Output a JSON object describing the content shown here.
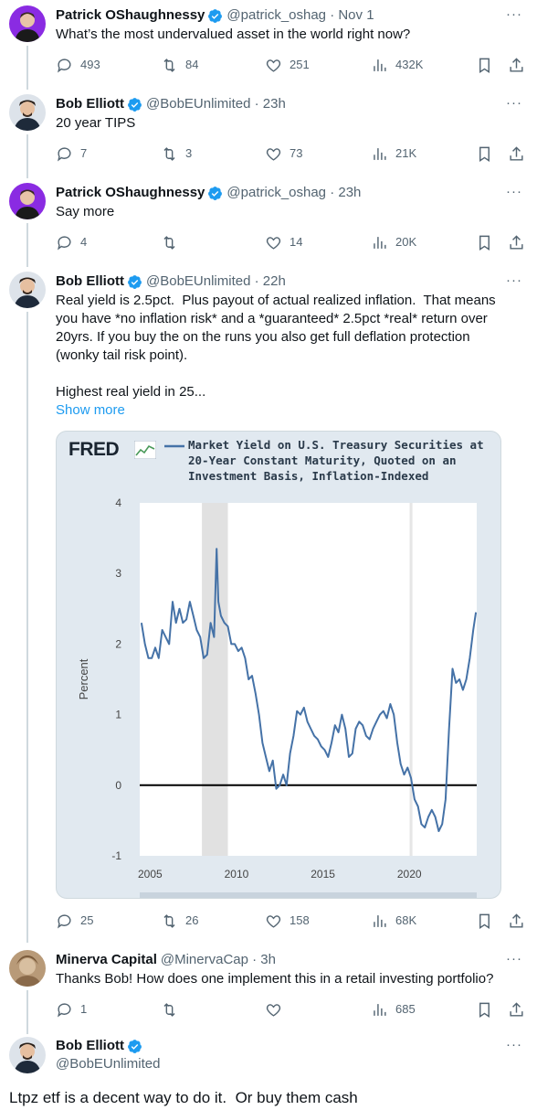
{
  "tweets": [
    {
      "name": "Patrick OShaughnessy",
      "meta": "@patrick_oshag · Nov 1",
      "text": "What’s the most undervalued asset in the world right now?",
      "replies": "493",
      "retweets": "84",
      "likes": "251",
      "views": "432K"
    },
    {
      "name": "Bob Elliott",
      "meta": "@BobEUnlimited · 23h",
      "text": "20 year TIPS",
      "replies": "7",
      "retweets": "3",
      "likes": "73",
      "views": "21K"
    },
    {
      "name": "Patrick OShaughnessy",
      "meta": "@patrick_oshag · 23h",
      "text": "Say more",
      "replies": "4",
      "retweets": "",
      "likes": "14",
      "views": "20K"
    },
    {
      "name": "Bob Elliott",
      "meta": "@BobEUnlimited · 22h",
      "text": "Real yield is 2.5pct.  Plus payout of actual realized inflation.  That means you have *no inflation risk* and a *guaranteed* 2.5pct *real* return over 20yrs. If you buy the on the runs you also get full deflation protection (wonky tail risk point).\n\nHighest real yield in 25...",
      "show_more": "Show more",
      "replies": "25",
      "retweets": "26",
      "likes": "158",
      "views": "68K"
    },
    {
      "name": "Minerva Capital",
      "meta": "@MinervaCap · 3h",
      "text": "Thanks Bob! How does one implement this in a retail investing portfolio?",
      "replies": "1",
      "retweets": "",
      "likes": "",
      "views": "685"
    },
    {
      "name": "Bob Elliott",
      "meta": "@BobEUnlimited",
      "text": "Ltpz etf is a decent way to do it.  Or buy them cash"
    }
  ],
  "more_glyph": "···",
  "colors": {
    "verified": "#1d9bf0",
    "line": "#4572a7",
    "link": "#1d9bf0",
    "muted": "#536471"
  },
  "chart_data": {
    "type": "line",
    "logo": "FRED",
    "title": "Market Yield on U.S. Treasury Securities at 20-Year Constant Maturity, Quoted on an Investment Basis, Inflation-Indexed",
    "ylabel": "Percent",
    "xlabel": "",
    "ylim": [
      -1,
      4
    ],
    "xlim": [
      2004.4,
      2023.9
    ],
    "yticks": [
      "4",
      "3",
      "2",
      "1",
      "0",
      "-1"
    ],
    "xticks": [
      "2005",
      "2010",
      "2015",
      "2020"
    ],
    "recession": [
      2008.0,
      2009.5
    ],
    "covid_line": 2020.1,
    "series": [
      {
        "x": [
          2004.5,
          2004.7,
          2004.9,
          2005.1,
          2005.3,
          2005.5,
          2005.7,
          2005.9,
          2006.1,
          2006.3,
          2006.5,
          2006.7,
          2006.9,
          2007.1,
          2007.3,
          2007.5,
          2007.7,
          2007.9,
          2008.1,
          2008.3,
          2008.5,
          2008.7,
          2008.85,
          2008.95,
          2009.1,
          2009.3,
          2009.5,
          2009.7,
          2009.9,
          2010.1,
          2010.3,
          2010.5,
          2010.7,
          2010.9,
          2011.1,
          2011.3,
          2011.5,
          2011.7,
          2011.9,
          2012.1,
          2012.3,
          2012.5,
          2012.7,
          2012.9,
          2013.1,
          2013.3,
          2013.5,
          2013.7,
          2013.9,
          2014.1,
          2014.3,
          2014.5,
          2014.7,
          2014.9,
          2015.1,
          2015.3,
          2015.5,
          2015.7,
          2015.9,
          2016.1,
          2016.3,
          2016.5,
          2016.7,
          2016.9,
          2017.1,
          2017.3,
          2017.5,
          2017.7,
          2017.9,
          2018.1,
          2018.3,
          2018.5,
          2018.7,
          2018.9,
          2019.1,
          2019.3,
          2019.5,
          2019.7,
          2019.9,
          2020.1,
          2020.3,
          2020.5,
          2020.7,
          2020.9,
          2021.1,
          2021.3,
          2021.5,
          2021.7,
          2021.9,
          2022.1,
          2022.3,
          2022.5,
          2022.7,
          2022.9,
          2023.1,
          2023.3,
          2023.5,
          2023.7,
          2023.85
        ],
        "y": [
          2.3,
          2.0,
          1.8,
          1.8,
          1.95,
          1.8,
          2.2,
          2.1,
          2.0,
          2.6,
          2.3,
          2.5,
          2.3,
          2.35,
          2.6,
          2.4,
          2.2,
          2.1,
          1.8,
          1.85,
          2.3,
          2.1,
          3.35,
          2.6,
          2.4,
          2.3,
          2.25,
          2.0,
          2.0,
          1.9,
          1.95,
          1.8,
          1.5,
          1.55,
          1.3,
          1.0,
          0.6,
          0.4,
          0.2,
          0.35,
          -0.05,
          0.0,
          0.15,
          0.0,
          0.45,
          0.7,
          1.05,
          1.0,
          1.1,
          0.9,
          0.8,
          0.7,
          0.65,
          0.55,
          0.5,
          0.4,
          0.6,
          0.85,
          0.75,
          1.0,
          0.8,
          0.4,
          0.45,
          0.8,
          0.9,
          0.85,
          0.7,
          0.65,
          0.8,
          0.9,
          1.0,
          1.05,
          0.95,
          1.15,
          1.0,
          0.6,
          0.3,
          0.15,
          0.25,
          0.1,
          -0.2,
          -0.3,
          -0.55,
          -0.6,
          -0.45,
          -0.35,
          -0.45,
          -0.65,
          -0.55,
          -0.2,
          0.8,
          1.65,
          1.45,
          1.5,
          1.35,
          1.5,
          1.8,
          2.2,
          2.45
        ]
      }
    ]
  }
}
